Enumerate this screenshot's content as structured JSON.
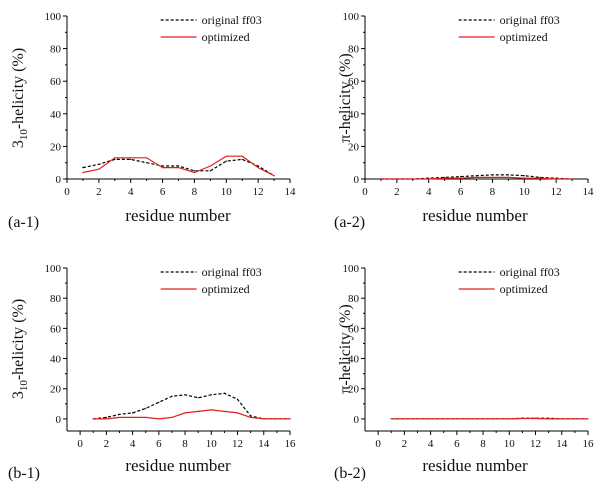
{
  "chart_data": [
    {
      "type": "line",
      "panel_label": "(a-1)",
      "xlabel": "residue number",
      "ylabel_main": "3",
      "ylabel_sub": "10",
      "ylabel_rest": "-helicity (%)",
      "xlim": [
        0,
        14
      ],
      "xticks": [
        "0",
        "2",
        "4",
        "6",
        "8",
        "10",
        "12",
        "14"
      ],
      "ylim": [
        0,
        100
      ],
      "yticks": [
        "0",
        "20",
        "40",
        "60",
        "80",
        "100"
      ],
      "legend": [
        "original ff03",
        "optimized"
      ],
      "series": [
        {
          "name": "original ff03",
          "style": "dashed",
          "color": "#000000",
          "x": [
            1,
            2,
            3,
            4,
            5,
            6,
            7,
            8,
            9,
            10,
            11,
            12,
            13
          ],
          "y": [
            7,
            9,
            12,
            12,
            10,
            8,
            8,
            5,
            5,
            11,
            12,
            8,
            2
          ]
        },
        {
          "name": "optimized",
          "style": "solid",
          "color": "#e0201b",
          "x": [
            1,
            2,
            3,
            4,
            5,
            6,
            7,
            8,
            9,
            10,
            11,
            12,
            13
          ],
          "y": [
            4,
            6,
            13,
            13,
            13,
            7,
            7,
            4,
            8,
            14,
            14,
            7,
            2
          ]
        }
      ]
    },
    {
      "type": "line",
      "panel_label": "(a-2)",
      "xlabel": "residue number",
      "ylabel_main": "π-helicity (%)",
      "xlim": [
        0,
        14
      ],
      "xticks": [
        "0",
        "2",
        "4",
        "6",
        "8",
        "10",
        "12",
        "14"
      ],
      "ylim": [
        0,
        100
      ],
      "yticks": [
        "0",
        "20",
        "40",
        "60",
        "80",
        "100"
      ],
      "legend": [
        "original ff03",
        "optimized"
      ],
      "series": [
        {
          "name": "original ff03",
          "style": "dashed",
          "color": "#000000",
          "x": [
            1,
            2,
            3,
            4,
            5,
            6,
            7,
            8,
            9,
            10,
            11,
            12,
            13
          ],
          "y": [
            0,
            0,
            0,
            0.5,
            1,
            1.5,
            2,
            2.5,
            2.5,
            2,
            1,
            0.5,
            0
          ]
        },
        {
          "name": "optimized",
          "style": "solid",
          "color": "#e0201b",
          "x": [
            1,
            2,
            3,
            4,
            5,
            6,
            7,
            8,
            9,
            10,
            11,
            12,
            13
          ],
          "y": [
            0,
            0,
            0,
            0,
            0.5,
            0.5,
            1,
            1,
            1,
            0.5,
            0.5,
            0,
            0
          ]
        }
      ]
    },
    {
      "type": "line",
      "panel_label": "(b-1)",
      "xlabel": "residue number",
      "ylabel_main": "3",
      "ylabel_sub": "10",
      "ylabel_rest": "-helicity (%)",
      "xlim": [
        -1,
        16
      ],
      "xticks": [
        "0",
        "2",
        "4",
        "6",
        "8",
        "10",
        "12",
        "14",
        "16"
      ],
      "ylim": [
        -8,
        100
      ],
      "yticks": [
        "0",
        "20",
        "40",
        "60",
        "80",
        "100"
      ],
      "legend": [
        "original ff03",
        "optimized"
      ],
      "series": [
        {
          "name": "original ff03",
          "style": "dashed",
          "color": "#000000",
          "x": [
            1,
            2,
            3,
            4,
            5,
            6,
            7,
            8,
            9,
            10,
            11,
            12,
            13,
            14,
            15,
            16
          ],
          "y": [
            0,
            1,
            3,
            4,
            7,
            11,
            15,
            16,
            14,
            16,
            17,
            13,
            2,
            0,
            0,
            0
          ]
        },
        {
          "name": "optimized",
          "style": "solid",
          "color": "#e0201b",
          "x": [
            1,
            2,
            3,
            4,
            5,
            6,
            7,
            8,
            9,
            10,
            11,
            12,
            13,
            14,
            15,
            16
          ],
          "y": [
            0,
            0,
            1,
            1,
            1,
            0,
            1,
            4,
            5,
            6,
            5,
            4,
            1,
            0,
            0,
            0
          ]
        }
      ]
    },
    {
      "type": "line",
      "panel_label": "(b-2)",
      "xlabel": "residue number",
      "ylabel_main": "π-helicity (%)",
      "xlim": [
        -1,
        16
      ],
      "xticks": [
        "0",
        "2",
        "4",
        "6",
        "8",
        "10",
        "12",
        "14",
        "16"
      ],
      "ylim": [
        -8,
        100
      ],
      "yticks": [
        "0",
        "20",
        "40",
        "60",
        "80",
        "100"
      ],
      "legend": [
        "original ff03",
        "optimized"
      ],
      "series": [
        {
          "name": "original ff03",
          "style": "dashed",
          "color": "#000000",
          "x": [
            1,
            2,
            3,
            4,
            5,
            6,
            7,
            8,
            9,
            10,
            11,
            12,
            13,
            14,
            15,
            16
          ],
          "y": [
            0,
            0,
            0,
            0,
            0,
            0,
            0,
            0,
            0,
            0,
            0.5,
            0.5,
            0.5,
            0,
            0,
            0
          ]
        },
        {
          "name": "optimized",
          "style": "solid",
          "color": "#e0201b",
          "x": [
            1,
            2,
            3,
            4,
            5,
            6,
            7,
            8,
            9,
            10,
            11,
            12,
            13,
            14,
            15,
            16
          ],
          "y": [
            0,
            0,
            0,
            0,
            0,
            0,
            0,
            0,
            0,
            0,
            0.3,
            0.3,
            0,
            0,
            0,
            0
          ]
        }
      ]
    }
  ]
}
